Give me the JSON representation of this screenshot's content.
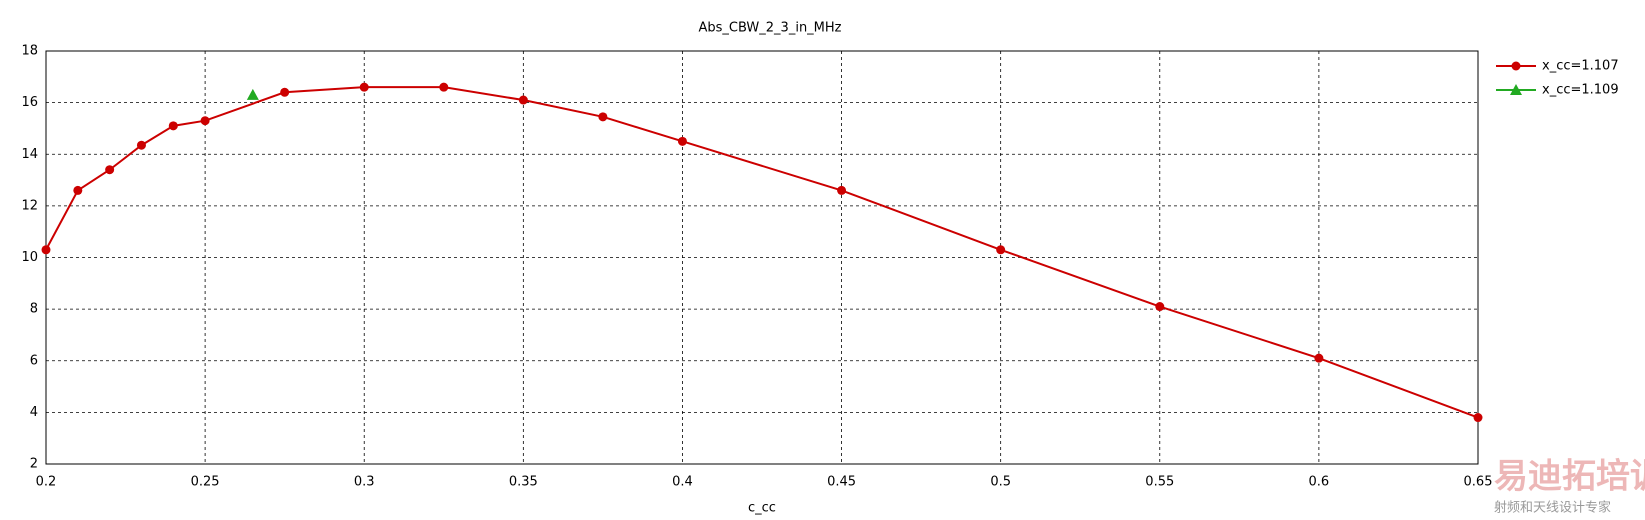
{
  "chart_data": {
    "type": "line",
    "title": "Abs_CBW_2_3_in_MHz",
    "x_label": "c_cc",
    "xlim": [
      0.2,
      0.65
    ],
    "xticks": [
      0.2,
      0.25,
      0.3,
      0.35,
      0.4,
      0.45,
      0.5,
      0.55,
      0.6,
      0.65
    ],
    "ylim": [
      2,
      18
    ],
    "yticks": [
      2,
      4,
      6,
      8,
      10,
      12,
      14,
      16,
      18
    ],
    "grid": true,
    "legend": "right",
    "series": [
      {
        "name": "x_cc=1.107",
        "color": "#cc0000",
        "marker": "circle",
        "x": [
          0.2,
          0.21,
          0.22,
          0.23,
          0.24,
          0.25,
          0.275,
          0.3,
          0.325,
          0.35,
          0.375,
          0.4,
          0.45,
          0.5,
          0.55,
          0.6,
          0.65
        ],
        "values": [
          10.3,
          12.6,
          13.4,
          14.35,
          15.1,
          15.3,
          16.4,
          16.6,
          16.6,
          16.1,
          15.45,
          14.5,
          12.6,
          10.3,
          8.1,
          6.1,
          3.8
        ]
      },
      {
        "name": "x_cc=1.109",
        "color": "#22aa22",
        "marker": "triangle",
        "x": [
          0.265
        ],
        "values": [
          16.3
        ]
      }
    ]
  },
  "watermark": {
    "title": "易迪拓培训",
    "subtitle": "射频和天线设计专家"
  }
}
